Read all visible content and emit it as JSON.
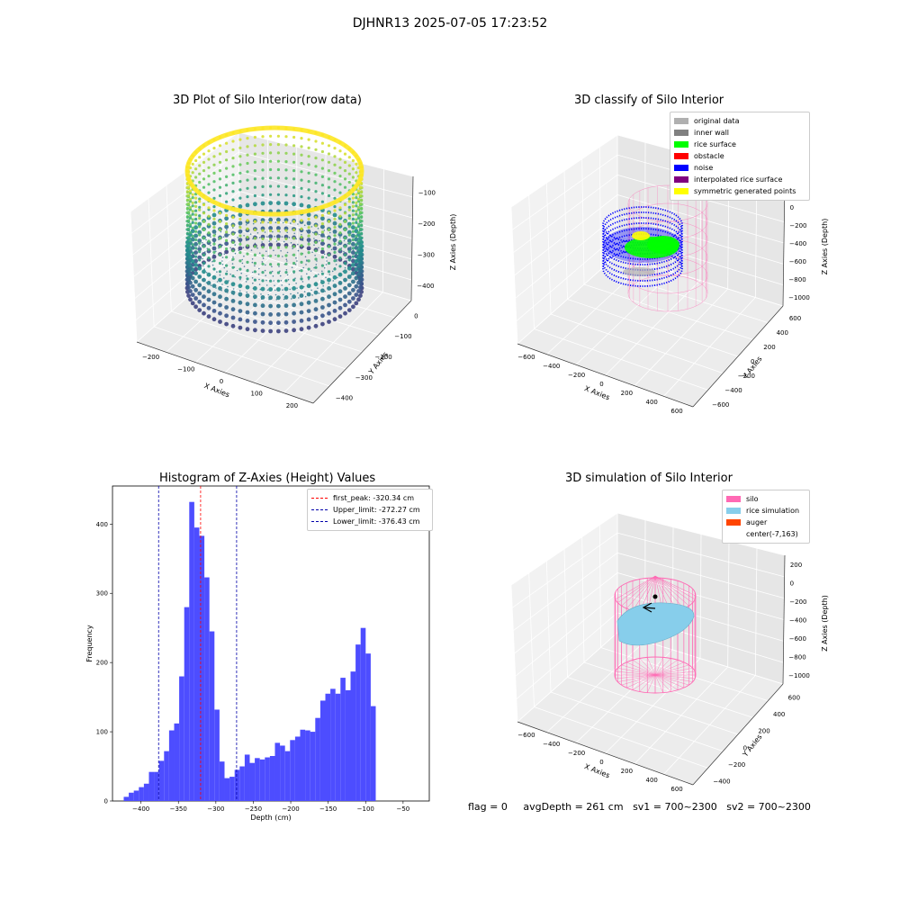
{
  "figure_title": "DJHNR13 2025-07-05 17:23:52",
  "bottom_status": {
    "flag": "flag = 0",
    "avg_depth": "avgDepth = 261 cm",
    "sv1": "sv1 = 700~2300",
    "sv2": "sv2 = 700~2300"
  },
  "colors": {
    "histogram_bars": "#4d4dff",
    "first_peak_line": "#ff0000",
    "limit_lines": "#0000aa",
    "silo": "#ff69b4",
    "rice_simulation": "#87ceeb",
    "auger": "#ff4500",
    "noise": "#0000ff",
    "rice_surface": "#00ff00",
    "symmetric_points": "#ffff00",
    "original_data": "#b0b0b0",
    "inner_wall": "#808080",
    "obstacle": "#ff0000",
    "interpolated": "#800080"
  },
  "chart_data": [
    {
      "type": "scatter",
      "title": "3D Plot of Silo Interior(row data)",
      "projection": "3d",
      "colormap": "viridis",
      "xlabel": "X Axies",
      "ylabel": "Y Axies",
      "zlabel": "Z Axies (Depth)",
      "x_ticks": [
        "−200",
        "−100",
        "0",
        "100",
        "200"
      ],
      "y_ticks": [
        "−400",
        "−300",
        "−200",
        "−100",
        "0"
      ],
      "z_ticks": [
        "−100",
        "−200",
        "−300",
        "−400"
      ],
      "xlim": [
        -250,
        250
      ],
      "ylim": [
        -450,
        50
      ],
      "zlim": [
        -450,
        -20
      ]
    },
    {
      "type": "scatter",
      "title": "3D classify of Silo Interior",
      "projection": "3d",
      "xlabel": "X Axies",
      "ylabel": "Y Axies",
      "zlabel": "Z Axies (Depth)",
      "x_ticks": [
        "−600",
        "−400",
        "−200",
        "0",
        "200",
        "400",
        "600"
      ],
      "y_ticks": [
        "−600",
        "−400",
        "−200",
        "0",
        "200",
        "400",
        "600"
      ],
      "z_ticks": [
        "200",
        "0",
        "−200",
        "−400",
        "−600",
        "−800",
        "−1000"
      ],
      "legend": [
        {
          "label": "original data",
          "color": "#b0b0b0"
        },
        {
          "label": "inner wall",
          "color": "#808080"
        },
        {
          "label": "rice surface",
          "color": "#00ff00"
        },
        {
          "label": "obstacle",
          "color": "#ff0000"
        },
        {
          "label": "noise",
          "color": "#0000ff"
        },
        {
          "label": "interpolated rice surface",
          "color": "#800080"
        },
        {
          "label": "symmetric generated points",
          "color": "#ffff00"
        }
      ],
      "legend_position": "top-right"
    },
    {
      "type": "bar",
      "title": "Histogram of Z-Axies (Height) Values",
      "xlabel": "Depth (cm)",
      "ylabel": "Frequency",
      "xlim": [
        -438,
        -15
      ],
      "ylim": [
        0,
        455
      ],
      "x_ticks": [
        -400,
        -350,
        -300,
        -250,
        -200,
        -150,
        -100,
        -50
      ],
      "y_ticks": [
        0,
        100,
        200,
        300,
        400
      ],
      "x_tick_labels": [
        "−400",
        "−350",
        "−300",
        "−250",
        "−200",
        "−150",
        "−100",
        "−50"
      ],
      "bin_start": -423,
      "bin_width": 6.73,
      "values": [
        6,
        12,
        15,
        20,
        25,
        42,
        42,
        58,
        72,
        102,
        112,
        180,
        280,
        432,
        395,
        383,
        323,
        245,
        132,
        57,
        33,
        35,
        45,
        50,
        67,
        55,
        62,
        60,
        63,
        65,
        84,
        80,
        72,
        88,
        93,
        103,
        102,
        100,
        120,
        145,
        155,
        162,
        155,
        178,
        160,
        187,
        226,
        250,
        213,
        137
      ],
      "lines": [
        {
          "label": "first_peak: -320.34 cm",
          "x": -320.34,
          "color": "#ff0000"
        },
        {
          "label": "Upper_limit: -272.27 cm",
          "x": -272.27,
          "color": "#0000aa"
        },
        {
          "label": "Lower_limit: -376.43 cm",
          "x": -376.43,
          "color": "#0000aa"
        }
      ],
      "legend_position": "top-right"
    },
    {
      "type": "scatter",
      "title": "3D simulation of Silo Interior",
      "projection": "3d",
      "xlabel": "X Axies",
      "ylabel": "Y Axies",
      "zlabel": "Z Axies (Depth)",
      "x_ticks": [
        "−600",
        "−400",
        "−200",
        "0",
        "200",
        "400",
        "600"
      ],
      "y_ticks": [
        "−400",
        "−200",
        "0",
        "200",
        "400",
        "600"
      ],
      "z_ticks": [
        "200",
        "0",
        "−200",
        "−400",
        "−600",
        "−800",
        "−1000"
      ],
      "legend": [
        {
          "label": "silo",
          "color": "#ff69b4"
        },
        {
          "label": "rice simulation",
          "color": "#87ceeb"
        },
        {
          "label": "auger",
          "color": "#ff4500"
        },
        {
          "label": "center(-7,163)",
          "color": ""
        }
      ],
      "legend_position": "top-right"
    }
  ]
}
